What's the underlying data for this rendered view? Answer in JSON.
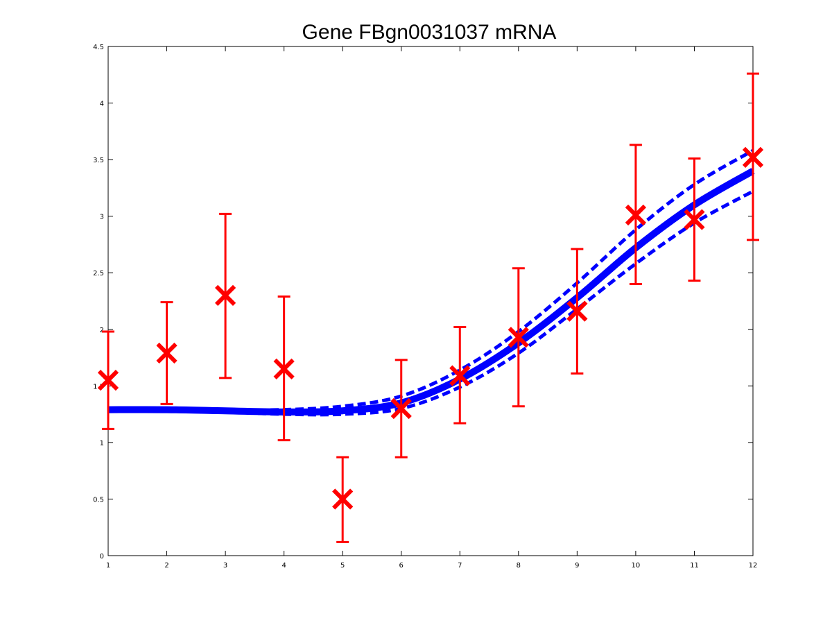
{
  "chart_data": {
    "type": "line",
    "title": "Gene FBgn0031037 mRNA",
    "xlabel": "",
    "ylabel": "",
    "xlim": [
      1,
      12
    ],
    "ylim": [
      0,
      4.5
    ],
    "xticks": [
      "1",
      "2",
      "3",
      "4",
      "5",
      "6",
      "7",
      "8",
      "9",
      "10",
      "11",
      "12"
    ],
    "yticks": [
      "0",
      "0.5",
      "1",
      "1.5",
      "2",
      "2.5",
      "3",
      "3.5",
      "4",
      "4.5"
    ],
    "grid": false,
    "observations": {
      "x": [
        1,
        2,
        3,
        4,
        5,
        6,
        7,
        8,
        9,
        10,
        11,
        12
      ],
      "y": [
        1.55,
        1.79,
        2.3,
        1.65,
        0.5,
        1.3,
        1.59,
        1.93,
        2.16,
        3.01,
        2.97,
        3.52
      ],
      "error_lower": [
        1.12,
        1.34,
        1.57,
        1.02,
        0.12,
        0.87,
        1.17,
        1.32,
        1.61,
        2.4,
        2.43,
        2.79
      ],
      "error_upper": [
        1.98,
        2.24,
        3.02,
        2.29,
        0.87,
        1.73,
        2.02,
        2.54,
        2.71,
        3.63,
        3.51,
        4.26
      ],
      "color": "#ff0000"
    },
    "fit": {
      "x": [
        1,
        2,
        3,
        4,
        5,
        6,
        7,
        8,
        9,
        10,
        11,
        12
      ],
      "mean": [
        1.29,
        1.29,
        1.28,
        1.27,
        1.28,
        1.35,
        1.56,
        1.88,
        2.28,
        2.72,
        3.1,
        3.4
      ],
      "lower": [
        1.29,
        1.28,
        1.27,
        1.25,
        1.25,
        1.3,
        1.49,
        1.79,
        2.18,
        2.58,
        2.94,
        3.22
      ],
      "upper": [
        1.3,
        1.3,
        1.29,
        1.29,
        1.32,
        1.41,
        1.64,
        1.98,
        2.41,
        2.88,
        3.28,
        3.58
      ],
      "color": "#0000ff"
    }
  }
}
